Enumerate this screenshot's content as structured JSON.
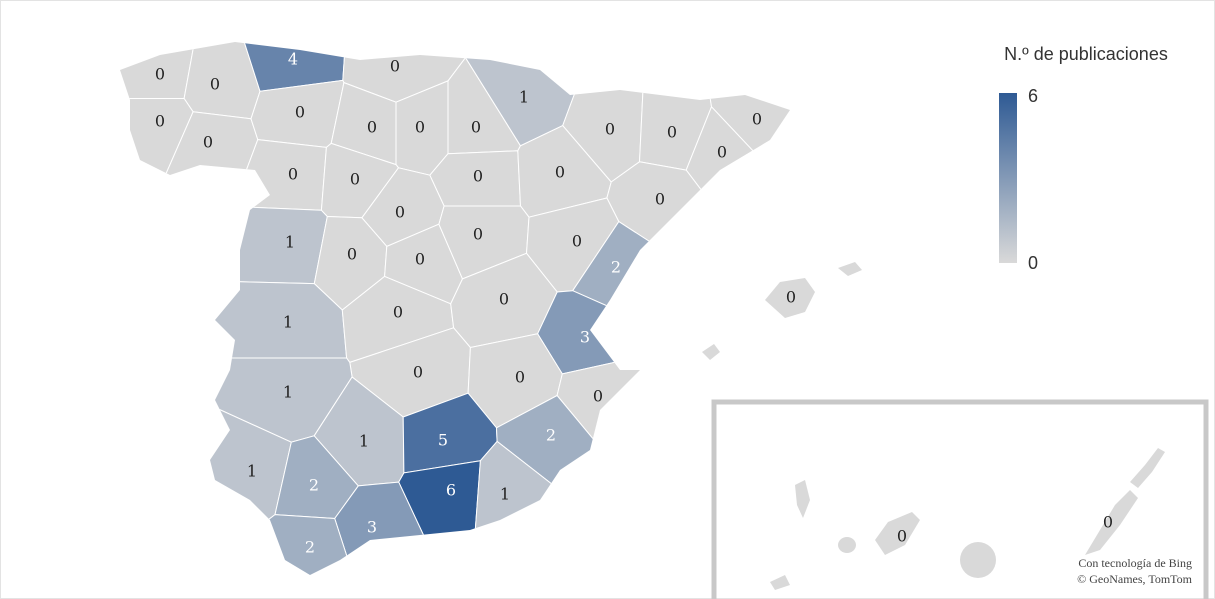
{
  "map": {
    "legend": {
      "title": "N.º de publicaciones",
      "min": 0,
      "max": 6,
      "color_min": "#d9d9d9",
      "color_max": "#2e5a94"
    },
    "values": [
      0,
      0,
      4,
      0,
      0,
      0,
      0,
      0,
      0,
      0,
      1,
      0,
      0,
      0,
      0,
      0,
      0,
      0,
      0,
      0,
      0,
      1,
      0,
      0,
      0,
      0,
      2,
      1,
      0,
      0,
      3,
      0,
      0,
      0,
      0,
      1,
      1,
      5,
      2,
      1,
      2,
      6,
      1,
      3,
      2,
      0,
      0
    ],
    "attribution": [
      "Con tecnología de Bing",
      "© GeoNames, TomTom"
    ]
  }
}
